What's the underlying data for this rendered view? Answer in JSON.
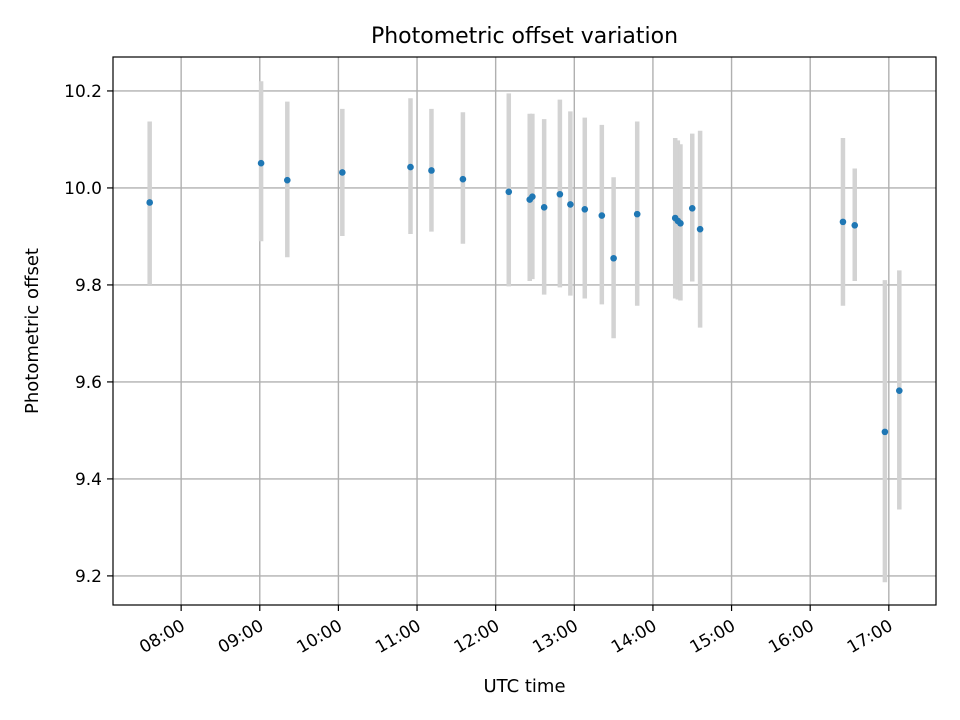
{
  "chart_data": {
    "type": "scatter",
    "title": "Photometric offset variation",
    "xlabel": "UTC time",
    "ylabel": "Photometric offset",
    "x_ticks": [
      "08:00",
      "09:00",
      "10:00",
      "11:00",
      "12:00",
      "13:00",
      "14:00",
      "15:00",
      "16:00",
      "17:00"
    ],
    "y_ticks": [
      9.2,
      9.4,
      9.6,
      9.8,
      10.0,
      10.2
    ],
    "xlim": [
      "07:08",
      "17:36"
    ],
    "ylim": [
      9.14,
      10.27
    ],
    "grid": true,
    "colors": {
      "points": "#1f77b4",
      "error_bars": "#d3d3d3",
      "grid": "#b0b0b0"
    },
    "points": [
      {
        "x": "07:36",
        "y": 9.97,
        "lo": 9.8,
        "hi": 10.137
      },
      {
        "x": "09:01",
        "y": 10.051,
        "lo": 9.89,
        "hi": 10.22
      },
      {
        "x": "09:21",
        "y": 10.016,
        "lo": 9.857,
        "hi": 10.178
      },
      {
        "x": "10:03",
        "y": 10.032,
        "lo": 9.901,
        "hi": 10.163
      },
      {
        "x": "10:55",
        "y": 10.043,
        "lo": 9.905,
        "hi": 10.185
      },
      {
        "x": "11:11",
        "y": 10.036,
        "lo": 9.91,
        "hi": 10.163
      },
      {
        "x": "11:35",
        "y": 10.018,
        "lo": 9.885,
        "hi": 10.156
      },
      {
        "x": "12:10",
        "y": 9.992,
        "lo": 9.797,
        "hi": 10.195
      },
      {
        "x": "12:26",
        "y": 9.976,
        "lo": 9.808,
        "hi": 10.153
      },
      {
        "x": "12:28",
        "y": 9.982,
        "lo": 9.812,
        "hi": 10.153
      },
      {
        "x": "12:37",
        "y": 9.96,
        "lo": 9.78,
        "hi": 10.142
      },
      {
        "x": "12:49",
        "y": 9.987,
        "lo": 9.795,
        "hi": 10.182
      },
      {
        "x": "12:57",
        "y": 9.966,
        "lo": 9.778,
        "hi": 10.158
      },
      {
        "x": "13:08",
        "y": 9.956,
        "lo": 9.772,
        "hi": 10.145
      },
      {
        "x": "13:21",
        "y": 9.943,
        "lo": 9.76,
        "hi": 10.13
      },
      {
        "x": "13:30",
        "y": 9.855,
        "lo": 9.69,
        "hi": 10.022
      },
      {
        "x": "13:48",
        "y": 9.946,
        "lo": 9.757,
        "hi": 10.137
      },
      {
        "x": "14:17",
        "y": 9.938,
        "lo": 9.772,
        "hi": 10.103
      },
      {
        "x": "14:19",
        "y": 9.932,
        "lo": 9.77,
        "hi": 10.098
      },
      {
        "x": "14:21",
        "y": 9.927,
        "lo": 9.768,
        "hi": 10.09
      },
      {
        "x": "14:30",
        "y": 9.958,
        "lo": 9.807,
        "hi": 10.112
      },
      {
        "x": "14:36",
        "y": 9.915,
        "lo": 9.712,
        "hi": 10.118
      },
      {
        "x": "16:25",
        "y": 9.93,
        "lo": 9.757,
        "hi": 10.103
      },
      {
        "x": "16:34",
        "y": 9.923,
        "lo": 9.808,
        "hi": 10.04
      },
      {
        "x": "16:57",
        "y": 9.497,
        "lo": 9.187,
        "hi": 9.81
      },
      {
        "x": "17:08",
        "y": 9.582,
        "lo": 9.337,
        "hi": 9.83
      }
    ]
  }
}
